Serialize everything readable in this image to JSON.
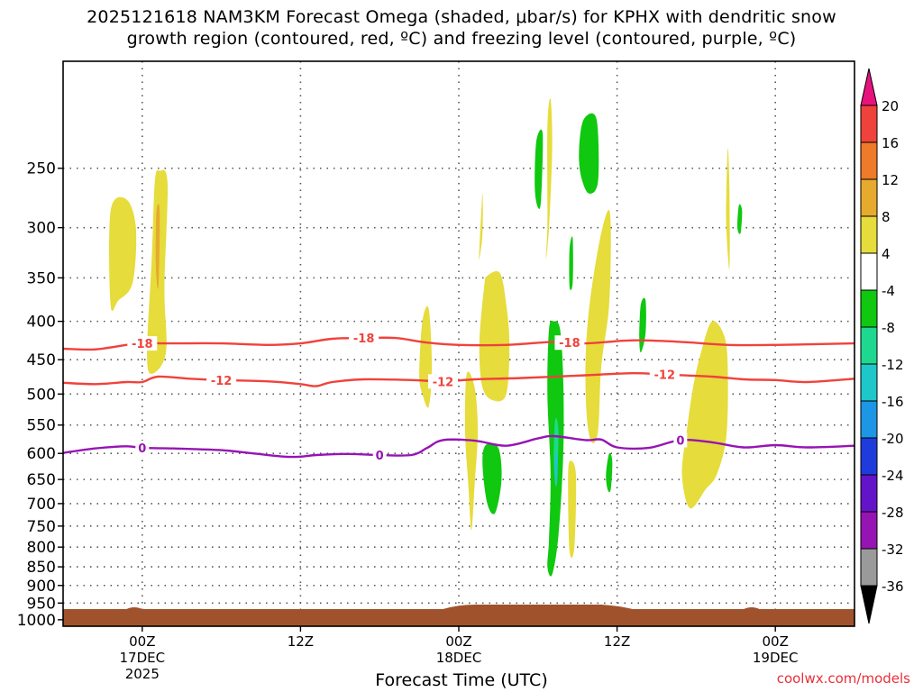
{
  "title_line1": "2025121618 NAM3KM Forecast Omega (shaded, μbar/s) for KPHX with dendritic snow",
  "title_line2": "growth region (contoured, red, ºC) and freezing level (contoured, purple, ºC)",
  "credit": "coolwx.com/models",
  "chart_data": {
    "type": "heatmap",
    "xlabel": "Forecast Time (UTC)",
    "x_hours_range": [
      -5,
      45
    ],
    "y_pressure_range_hPa": [
      1020,
      180
    ],
    "y_log_scale": true,
    "grid": true,
    "x_ticks": [
      {
        "hour": 0,
        "label": [
          "00Z",
          "17DEC",
          "2025"
        ]
      },
      {
        "hour": 10,
        "label": [
          "12Z"
        ]
      },
      {
        "hour": 20,
        "label": [
          "00Z",
          "18DEC"
        ]
      },
      {
        "hour": 30,
        "label": [
          "12Z"
        ]
      },
      {
        "hour": 40,
        "label": [
          "00Z",
          "19DEC"
        ]
      }
    ],
    "y_ticks": [
      250,
      300,
      350,
      400,
      450,
      500,
      550,
      600,
      650,
      700,
      750,
      800,
      850,
      900,
      950,
      1000
    ],
    "colorbar": {
      "labels": [
        "20",
        "16",
        "12",
        "8",
        "4",
        "-4",
        "-8",
        "-12",
        "-16",
        "-20",
        "-24",
        "-28",
        "-32",
        "-36"
      ],
      "colors": [
        "#e8127d",
        "#f0423c",
        "#ee7a2a",
        "#e6aa2e",
        "#e6dc3c",
        "#ffffff",
        "#0fc80f",
        "#1ed890",
        "#1ec8c8",
        "#1e96e6",
        "#1e3cdc",
        "#6414c8",
        "#9614b4",
        "#9a9a9a",
        "#000000"
      ]
    },
    "surface_color": "#a0522d",
    "contours": [
      {
        "level": "-18",
        "color": "#f0423c",
        "points": [
          [
            -5,
            435
          ],
          [
            -3,
            436
          ],
          [
            -1,
            430
          ],
          [
            0,
            428
          ],
          [
            2,
            428
          ],
          [
            5,
            428
          ],
          [
            8,
            430
          ],
          [
            10,
            428
          ],
          [
            12,
            422
          ],
          [
            14,
            421
          ],
          [
            16,
            421
          ],
          [
            18,
            427
          ],
          [
            20,
            430
          ],
          [
            23,
            430
          ],
          [
            26,
            426
          ],
          [
            28,
            428
          ],
          [
            31,
            424
          ],
          [
            34,
            426
          ],
          [
            37,
            430
          ],
          [
            40,
            430
          ],
          [
            45,
            428
          ]
        ]
      },
      {
        "level": "-12",
        "color": "#f0423c",
        "points": [
          [
            -5,
            483
          ],
          [
            -3,
            485
          ],
          [
            -1,
            482
          ],
          [
            0,
            482
          ],
          [
            1,
            474
          ],
          [
            3,
            477
          ],
          [
            5,
            479
          ],
          [
            8,
            481
          ],
          [
            10,
            485
          ],
          [
            11,
            488
          ],
          [
            12,
            482
          ],
          [
            14,
            478
          ],
          [
            17,
            479
          ],
          [
            19,
            481
          ],
          [
            21,
            478
          ],
          [
            24,
            476
          ],
          [
            28,
            472
          ],
          [
            31,
            469
          ],
          [
            33,
            471
          ],
          [
            36,
            474
          ],
          [
            38,
            478
          ],
          [
            40,
            479
          ],
          [
            42,
            482
          ],
          [
            45,
            477
          ]
        ]
      },
      {
        "level": "0",
        "color": "#9614b4",
        "points": [
          [
            -5,
            599
          ],
          [
            -3,
            591
          ],
          [
            -1,
            587
          ],
          [
            0,
            590
          ],
          [
            2,
            591
          ],
          [
            5,
            594
          ],
          [
            7,
            600
          ],
          [
            9,
            606
          ],
          [
            10,
            606
          ],
          [
            11,
            603
          ],
          [
            13,
            601
          ],
          [
            15,
            603
          ],
          [
            17,
            603
          ],
          [
            18,
            590
          ],
          [
            19,
            576
          ],
          [
            21,
            577
          ],
          [
            23,
            586
          ],
          [
            25,
            573
          ],
          [
            26,
            569
          ],
          [
            28,
            576
          ],
          [
            29,
            575
          ],
          [
            30,
            589
          ],
          [
            32,
            590
          ],
          [
            34,
            576
          ],
          [
            36,
            580
          ],
          [
            38,
            589
          ],
          [
            40,
            585
          ],
          [
            42,
            589
          ],
          [
            45,
            586
          ]
        ]
      }
    ],
    "shaded_regions": [
      {
        "value": 4,
        "color": "#e6dc3c",
        "points": [
          [
            -2,
            380
          ],
          [
            -2,
            285
          ],
          [
            -1,
            275
          ],
          [
            -0.4,
            300
          ],
          [
            -0.6,
            355
          ],
          [
            -1.5,
            375
          ]
        ]
      },
      {
        "value": 4,
        "color": "#e6dc3c",
        "points": [
          [
            0.6,
            330
          ],
          [
            0.8,
            260
          ],
          [
            1.1,
            252
          ],
          [
            1.6,
            262
          ],
          [
            1.4,
            360
          ],
          [
            1.5,
            440
          ],
          [
            0.6,
            470
          ],
          [
            0.3,
            440
          ]
        ]
      },
      {
        "value": 8,
        "color": "#e6aa2e",
        "points": [
          [
            0.85,
            330
          ],
          [
            0.9,
            285
          ],
          [
            1.1,
            285
          ],
          [
            1.05,
            350
          ],
          [
            0.95,
            360
          ]
        ]
      },
      {
        "value": 4,
        "color": "#e6dc3c",
        "points": [
          [
            17.5,
            470
          ],
          [
            17.7,
            400
          ],
          [
            18.1,
            385
          ],
          [
            18.3,
            460
          ],
          [
            18.1,
            520
          ],
          [
            17.7,
            500
          ]
        ]
      },
      {
        "value": 4,
        "color": "#e6dc3c",
        "points": [
          [
            20.5,
            470
          ],
          [
            21.0,
            490
          ],
          [
            21.2,
            560
          ],
          [
            21.0,
            660
          ],
          [
            20.8,
            760
          ],
          [
            20.6,
            660
          ],
          [
            20.4,
            560
          ]
        ]
      },
      {
        "value": 4,
        "color": "#e6dc3c",
        "points": [
          [
            21.3,
            320
          ],
          [
            21.5,
            270
          ],
          [
            21.5,
            305
          ],
          [
            21.3,
            330
          ]
        ]
      },
      {
        "value": 4,
        "color": "#e6dc3c",
        "points": [
          [
            21.5,
            490
          ],
          [
            21.3,
            430
          ],
          [
            21.6,
            360
          ],
          [
            21.8,
            348
          ],
          [
            22.6,
            345
          ],
          [
            23.0,
            380
          ],
          [
            23.2,
            430
          ],
          [
            23.0,
            500
          ],
          [
            22.2,
            510
          ]
        ]
      },
      {
        "value": -8,
        "color": "#0fc80f",
        "points": [
          [
            21.8,
            700
          ],
          [
            21.5,
            620
          ],
          [
            21.7,
            585
          ],
          [
            22.5,
            590
          ],
          [
            22.7,
            650
          ],
          [
            22.3,
            720
          ]
        ]
      },
      {
        "value": 4,
        "color": "#e6dc3c",
        "points": [
          [
            25.6,
            220
          ],
          [
            25.8,
            202
          ],
          [
            25.9,
            235
          ],
          [
            25.7,
            300
          ],
          [
            25.5,
            330
          ],
          [
            25.6,
            295
          ]
        ]
      },
      {
        "value": -8,
        "color": "#0fc80f",
        "points": [
          [
            24.8,
            265
          ],
          [
            24.9,
            230
          ],
          [
            25.3,
            225
          ],
          [
            25.2,
            275
          ],
          [
            25.0,
            282
          ]
        ]
      },
      {
        "value": -8,
        "color": "#0fc80f",
        "points": [
          [
            25.8,
            640
          ],
          [
            25.6,
            500
          ],
          [
            25.7,
            410
          ],
          [
            26.0,
            400
          ],
          [
            26.4,
            410
          ],
          [
            26.6,
            480
          ],
          [
            26.6,
            600
          ],
          [
            26.3,
            770
          ],
          [
            25.9,
            870
          ],
          [
            25.6,
            850
          ],
          [
            25.7,
            780
          ]
        ]
      },
      {
        "value": -12,
        "color": "#1ed890",
        "points": [
          [
            26.0,
            600
          ],
          [
            26.1,
            540
          ],
          [
            26.3,
            560
          ],
          [
            26.2,
            650
          ],
          [
            26.1,
            660
          ]
        ]
      },
      {
        "value": -16,
        "color": "#1ec8c8",
        "points": [
          [
            26.05,
            640
          ],
          [
            26.1,
            600
          ],
          [
            26.25,
            610
          ],
          [
            26.2,
            660
          ]
        ]
      },
      {
        "value": 4,
        "color": "#e6dc3c",
        "points": [
          [
            26.9,
            660
          ],
          [
            27.0,
            615
          ],
          [
            27.4,
            640
          ],
          [
            27.3,
            800
          ],
          [
            27.0,
            810
          ]
        ]
      },
      {
        "value": -8,
        "color": "#0fc80f",
        "points": [
          [
            27.0,
            320
          ],
          [
            27.2,
            310
          ],
          [
            27.2,
            355
          ],
          [
            27.0,
            360
          ]
        ]
      },
      {
        "value": -8,
        "color": "#0fc80f",
        "points": [
          [
            27.6,
            235
          ],
          [
            27.9,
            215
          ],
          [
            28.7,
            215
          ],
          [
            28.8,
            260
          ],
          [
            28.2,
            270
          ],
          [
            27.7,
            255
          ]
        ]
      },
      {
        "value": 4,
        "color": "#e6dc3c",
        "points": [
          [
            28.0,
            460
          ],
          [
            28.2,
            390
          ],
          [
            28.8,
            320
          ],
          [
            29.4,
            285
          ],
          [
            29.6,
            300
          ],
          [
            29.5,
            380
          ],
          [
            29.0,
            460
          ],
          [
            28.8,
            560
          ],
          [
            28.4,
            580
          ],
          [
            28.1,
            540
          ]
        ]
      },
      {
        "value": -8,
        "color": "#0fc80f",
        "points": [
          [
            29.3,
            640
          ],
          [
            29.5,
            600
          ],
          [
            29.7,
            615
          ],
          [
            29.6,
            670
          ],
          [
            29.4,
            670
          ]
        ]
      },
      {
        "value": -8,
        "color": "#0fc80f",
        "points": [
          [
            31.4,
            420
          ],
          [
            31.5,
            380
          ],
          [
            31.8,
            375
          ],
          [
            31.8,
            415
          ],
          [
            31.5,
            440
          ]
        ]
      },
      {
        "value": 4,
        "color": "#e6dc3c",
        "points": [
          [
            34.1,
            640
          ],
          [
            34.4,
            560
          ],
          [
            34.8,
            490
          ],
          [
            35.3,
            440
          ],
          [
            36.0,
            400
          ],
          [
            36.8,
            420
          ],
          [
            37.0,
            470
          ],
          [
            36.9,
            570
          ],
          [
            36.3,
            640
          ],
          [
            35.6,
            670
          ],
          [
            34.6,
            710
          ]
        ]
      },
      {
        "value": 4,
        "color": "#e6dc3c",
        "points": [
          [
            37.0,
            235
          ],
          [
            37.1,
            268
          ],
          [
            37.1,
            340
          ],
          [
            36.9,
            300
          ],
          [
            36.9,
            270
          ]
        ]
      },
      {
        "value": -8,
        "color": "#0fc80f",
        "points": [
          [
            37.6,
            300
          ],
          [
            37.7,
            280
          ],
          [
            37.9,
            285
          ],
          [
            37.8,
            305
          ]
        ]
      }
    ]
  }
}
